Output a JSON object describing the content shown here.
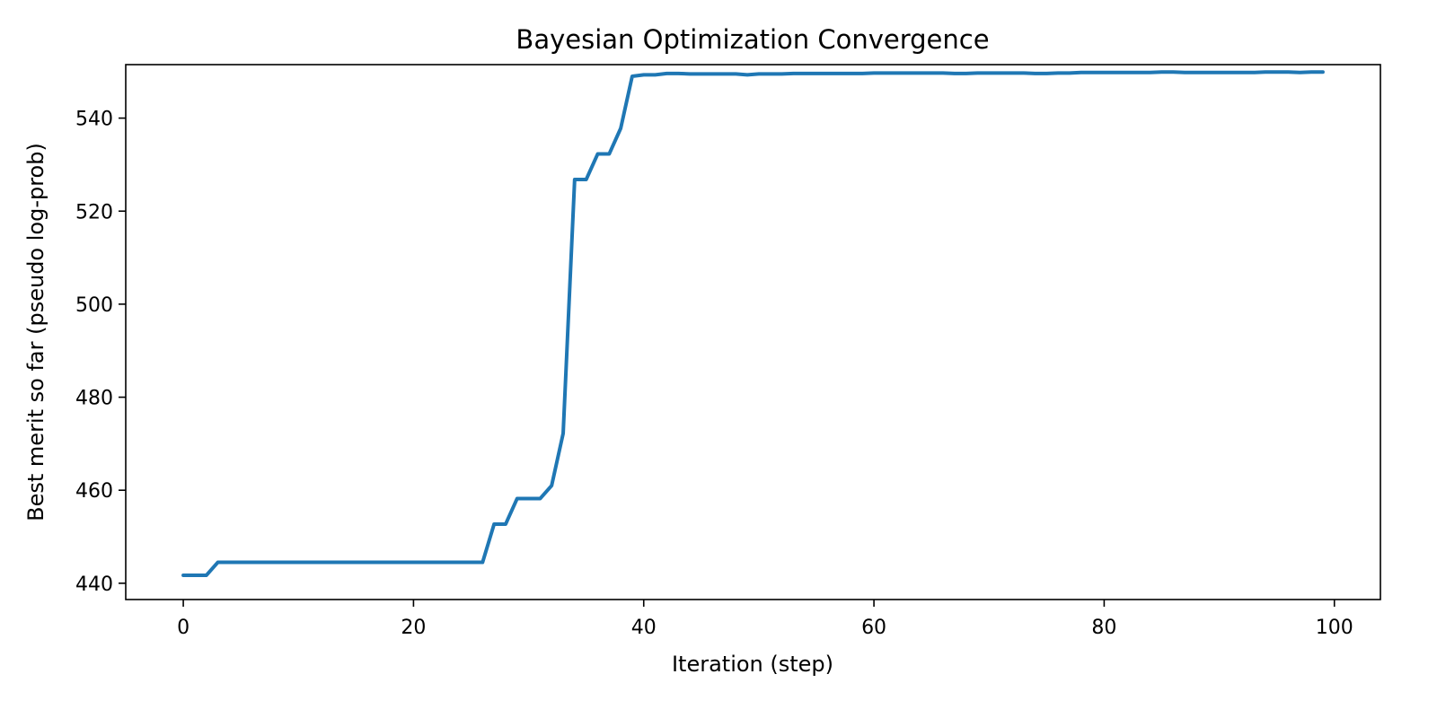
{
  "chart_data": {
    "type": "line",
    "title": "Bayesian Optimization Convergence",
    "xlabel": "Iteration (step)",
    "ylabel": "Best merit so far (pseudo log-prob)",
    "xlim": [
      -5,
      104
    ],
    "ylim": [
      436.5,
      551.5
    ],
    "xticks": [
      0,
      20,
      40,
      60,
      80,
      100
    ],
    "yticks": [
      440,
      460,
      480,
      500,
      520,
      540
    ],
    "grid": false,
    "legend": "none",
    "series": [
      {
        "color": "#1f77b4",
        "x": [
          0,
          1,
          2,
          3,
          4,
          5,
          6,
          7,
          8,
          9,
          10,
          11,
          12,
          13,
          14,
          15,
          16,
          17,
          18,
          19,
          20,
          21,
          22,
          23,
          24,
          25,
          26,
          27,
          28,
          29,
          30,
          31,
          32,
          33,
          34,
          35,
          36,
          37,
          38,
          39,
          40,
          41,
          42,
          43,
          44,
          45,
          46,
          47,
          48,
          49,
          50,
          51,
          52,
          53,
          54,
          55,
          56,
          57,
          58,
          59,
          60,
          61,
          62,
          63,
          64,
          65,
          66,
          67,
          68,
          69,
          70,
          71,
          72,
          73,
          74,
          75,
          76,
          77,
          78,
          79,
          80,
          81,
          82,
          83,
          84,
          85,
          86,
          87,
          88,
          89,
          90,
          91,
          92,
          93,
          94,
          95,
          96,
          97,
          98,
          99
        ],
        "y": [
          441.7,
          441.7,
          441.7,
          444.5,
          444.5,
          444.5,
          444.5,
          444.5,
          444.5,
          444.5,
          444.5,
          444.5,
          444.5,
          444.5,
          444.5,
          444.5,
          444.5,
          444.5,
          444.5,
          444.5,
          444.5,
          444.5,
          444.5,
          444.5,
          444.5,
          444.5,
          444.5,
          452.7,
          452.7,
          458.2,
          458.2,
          458.2,
          461.0,
          472.2,
          526.8,
          526.8,
          532.3,
          532.3,
          537.8,
          549.0,
          549.3,
          549.3,
          549.6,
          549.6,
          549.5,
          549.5,
          549.5,
          549.5,
          549.5,
          549.3,
          549.5,
          549.5,
          549.5,
          549.6,
          549.6,
          549.6,
          549.6,
          549.6,
          549.6,
          549.6,
          549.7,
          549.7,
          549.7,
          549.7,
          549.7,
          549.7,
          549.7,
          549.6,
          549.6,
          549.7,
          549.7,
          549.7,
          549.7,
          549.7,
          549.6,
          549.6,
          549.7,
          549.7,
          549.8,
          549.8,
          549.8,
          549.8,
          549.8,
          549.8,
          549.8,
          549.9,
          549.9,
          549.8,
          549.8,
          549.8,
          549.8,
          549.8,
          549.8,
          549.8,
          549.9,
          549.9,
          549.9,
          549.8,
          549.9,
          549.9
        ]
      }
    ]
  }
}
